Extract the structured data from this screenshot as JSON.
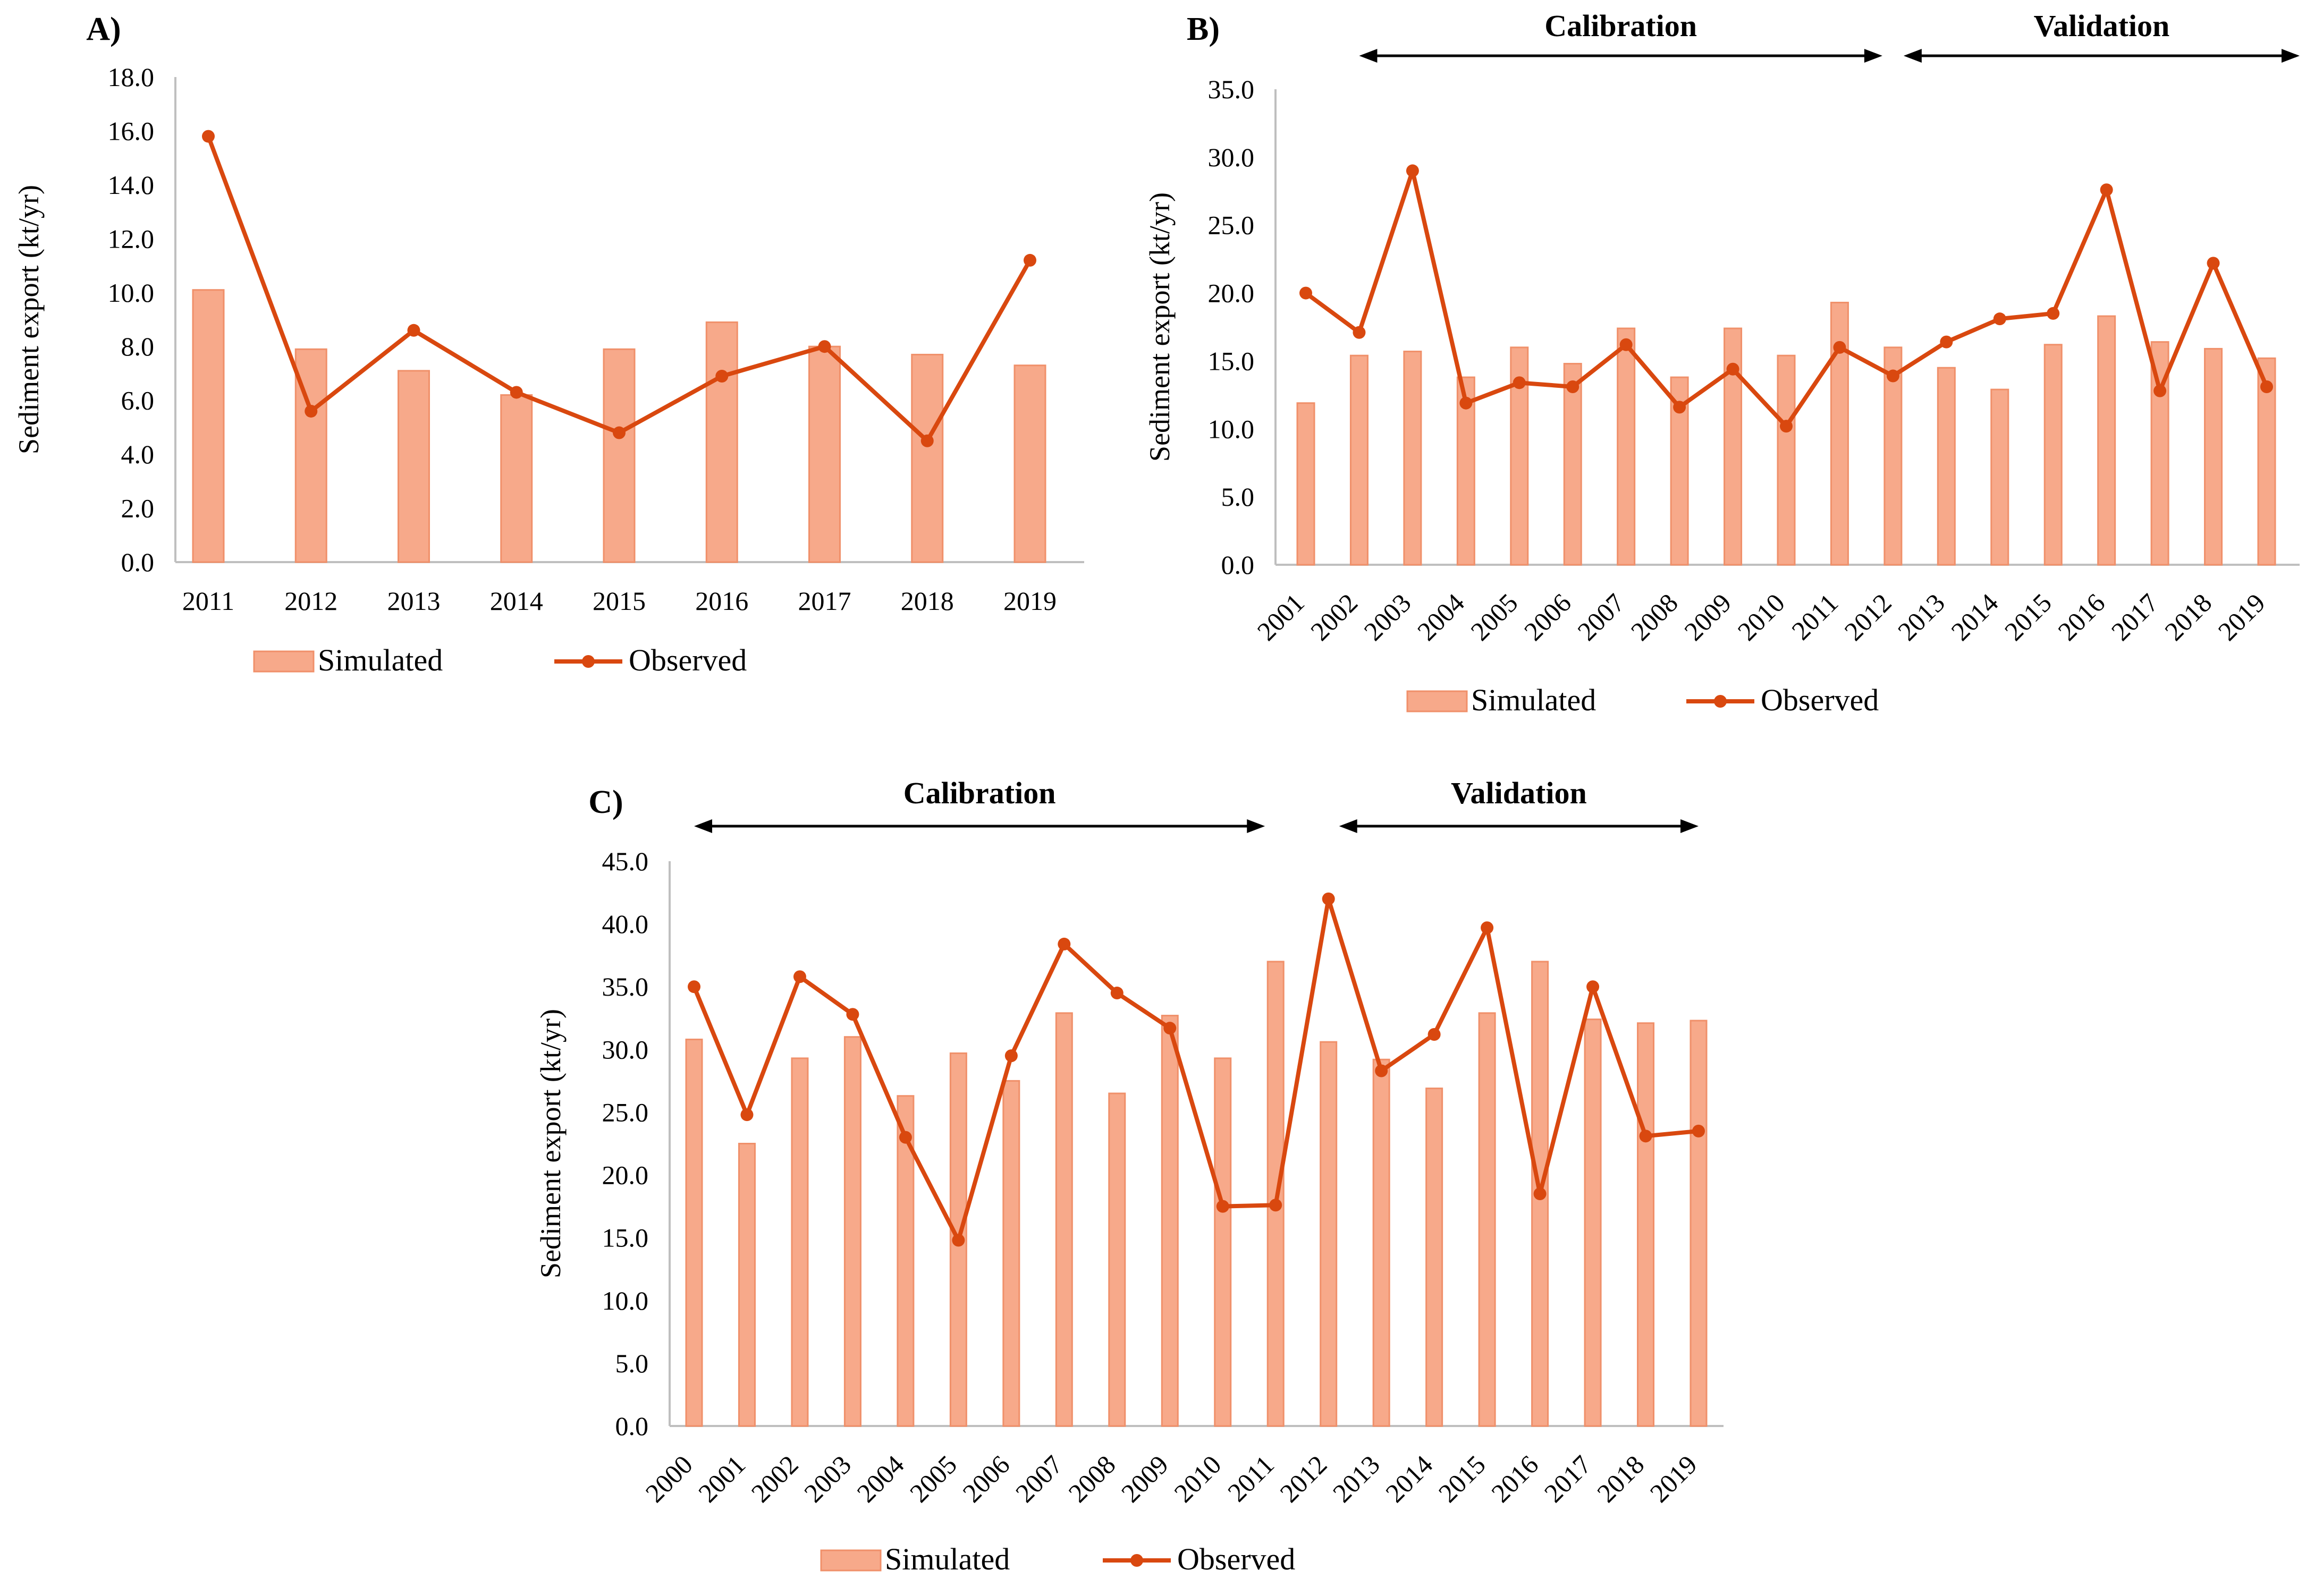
{
  "colors": {
    "bar": "#f7a98a",
    "bar_edge": "#f0906a",
    "line": "#d9480f"
  },
  "legend": {
    "simulated": "Simulated",
    "observed": "Observed"
  },
  "chart_data": [
    {
      "id": "A",
      "panel_label": "A)",
      "type": "bar+line",
      "ylabel": "Sediment  export  (kt/yr)",
      "yticks": [
        "0.0",
        "2.0",
        "4.0",
        "6.0",
        "8.0",
        "10.0",
        "12.0",
        "14.0",
        "16.0",
        "18.0"
      ],
      "ylim": [
        0,
        18
      ],
      "categories": [
        "2011",
        "2012",
        "2013",
        "2014",
        "2015",
        "2016",
        "2017",
        "2018",
        "2019"
      ],
      "rotate_xticks": false,
      "periods": [],
      "series": [
        {
          "name": "Simulated",
          "kind": "bar",
          "values": [
            10.1,
            7.9,
            7.1,
            6.2,
            7.9,
            8.9,
            8.0,
            7.7,
            7.3
          ]
        },
        {
          "name": "Observed",
          "kind": "line",
          "values": [
            15.8,
            5.6,
            8.6,
            6.3,
            4.8,
            6.9,
            8.0,
            4.5,
            11.2
          ]
        }
      ]
    },
    {
      "id": "B",
      "panel_label": "B)",
      "type": "bar+line",
      "ylabel": "Sediment  export  (kt/yr)",
      "yticks": [
        "0.0",
        "5.0",
        "10.0",
        "15.0",
        "20.0",
        "25.0",
        "30.0",
        "35.0"
      ],
      "ylim": [
        0,
        35
      ],
      "categories": [
        "2001",
        "2002",
        "2003",
        "2004",
        "2005",
        "2006",
        "2007",
        "2008",
        "2009",
        "2010",
        "2011",
        "2012",
        "2013",
        "2014",
        "2015",
        "2016",
        "2017",
        "2018",
        "2019"
      ],
      "rotate_xticks": true,
      "periods": [
        {
          "label": "Calibration",
          "from": "2002",
          "to": "2012"
        },
        {
          "label": "Validation",
          "from": "2012",
          "to": "2019"
        }
      ],
      "series": [
        {
          "name": "Simulated",
          "kind": "bar",
          "values": [
            11.9,
            15.4,
            15.7,
            13.8,
            16.0,
            14.8,
            17.4,
            13.8,
            17.4,
            15.4,
            19.3,
            16.0,
            14.5,
            12.9,
            16.2,
            18.3,
            16.4,
            15.9,
            15.2
          ]
        },
        {
          "name": "Observed",
          "kind": "line",
          "values": [
            20.0,
            17.1,
            29.0,
            11.9,
            13.4,
            13.1,
            16.2,
            11.6,
            14.4,
            10.2,
            16.0,
            13.9,
            16.4,
            18.1,
            18.5,
            27.6,
            12.8,
            22.2,
            13.1
          ]
        }
      ]
    },
    {
      "id": "C",
      "panel_label": "C)",
      "type": "bar+line",
      "ylabel": "Sediment  export  (kt/yr)",
      "yticks": [
        "0.0",
        "5.0",
        "10.0",
        "15.0",
        "20.0",
        "25.0",
        "30.0",
        "35.0",
        "40.0",
        "45.0"
      ],
      "ylim": [
        0,
        45
      ],
      "categories": [
        "2000",
        "2001",
        "2002",
        "2003",
        "2004",
        "2005",
        "2006",
        "2007",
        "2008",
        "2009",
        "2010",
        "2011",
        "2012",
        "2013",
        "2014",
        "2015",
        "2016",
        "2017",
        "2018",
        "2019"
      ],
      "rotate_xticks": true,
      "periods": [
        {
          "label": "Calibration",
          "from": "2000",
          "to": "2011"
        },
        {
          "label": "Validation",
          "from": "2012",
          "to": "2019"
        }
      ],
      "series": [
        {
          "name": "Simulated",
          "kind": "bar",
          "values": [
            30.8,
            22.5,
            29.3,
            31.0,
            26.3,
            29.7,
            27.5,
            32.9,
            26.5,
            32.7,
            29.3,
            37.0,
            30.6,
            29.2,
            26.9,
            32.9,
            37.0,
            32.4,
            32.1,
            32.3
          ]
        },
        {
          "name": "Observed",
          "kind": "line",
          "values": [
            35.0,
            24.8,
            35.8,
            32.8,
            23.0,
            14.8,
            29.5,
            38.4,
            34.5,
            31.7,
            17.5,
            17.6,
            42.0,
            28.3,
            31.2,
            39.7,
            18.5,
            35.0,
            23.1,
            23.5
          ]
        }
      ]
    }
  ]
}
